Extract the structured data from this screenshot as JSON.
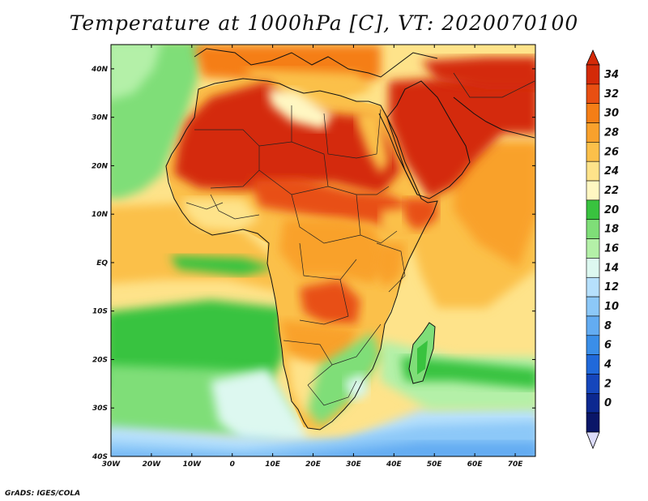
{
  "title": "Temperature at 1000hPa [C], VT: 2020070100",
  "credit": "GrADS: IGES/COLA",
  "map": {
    "type": "filled-contour map",
    "variable": "Temperature at 1000hPa",
    "units": "C",
    "valid_time": "2020070100",
    "lon_range": [
      -30,
      75
    ],
    "lat_range": [
      -40,
      45
    ],
    "lon_ticks": [
      {
        "value": -30,
        "label": "30W"
      },
      {
        "value": -20,
        "label": "20W"
      },
      {
        "value": -10,
        "label": "10W"
      },
      {
        "value": 0,
        "label": "0"
      },
      {
        "value": 10,
        "label": "10E"
      },
      {
        "value": 20,
        "label": "20E"
      },
      {
        "value": 30,
        "label": "30E"
      },
      {
        "value": 40,
        "label": "40E"
      },
      {
        "value": 50,
        "label": "50E"
      },
      {
        "value": 60,
        "label": "60E"
      },
      {
        "value": 70,
        "label": "70E"
      }
    ],
    "lat_ticks": [
      {
        "value": 40,
        "label": "40N"
      },
      {
        "value": 30,
        "label": "30N"
      },
      {
        "value": 20,
        "label": "20N"
      },
      {
        "value": 10,
        "label": "10N"
      },
      {
        "value": 0,
        "label": "EQ"
      },
      {
        "value": -10,
        "label": "10S"
      },
      {
        "value": -20,
        "label": "20S"
      },
      {
        "value": -30,
        "label": "30S"
      },
      {
        "value": -40,
        "label": "40S"
      }
    ]
  },
  "colorbar": {
    "levels": [
      "34",
      "32",
      "30",
      "28",
      "26",
      "24",
      "22",
      "20",
      "18",
      "16",
      "14",
      "12",
      "10",
      "8",
      "6",
      "4",
      "2",
      "0"
    ],
    "colors": [
      "#d42a08",
      "#e84f12",
      "#f57e16",
      "#f9a12c",
      "#fbc04a",
      "#fee38a",
      "#fff7c2",
      "#39c33f",
      "#7fde78",
      "#b4f0a8",
      "#ddf8f0",
      "#b6e0fc",
      "#8cc8f8",
      "#63acf2",
      "#3a8ee8",
      "#2069da",
      "#1546bc",
      "#0c2890",
      "#0a1668"
    ],
    "top_color": "#d42a08",
    "bottom_color": "#dcdcfa"
  }
}
